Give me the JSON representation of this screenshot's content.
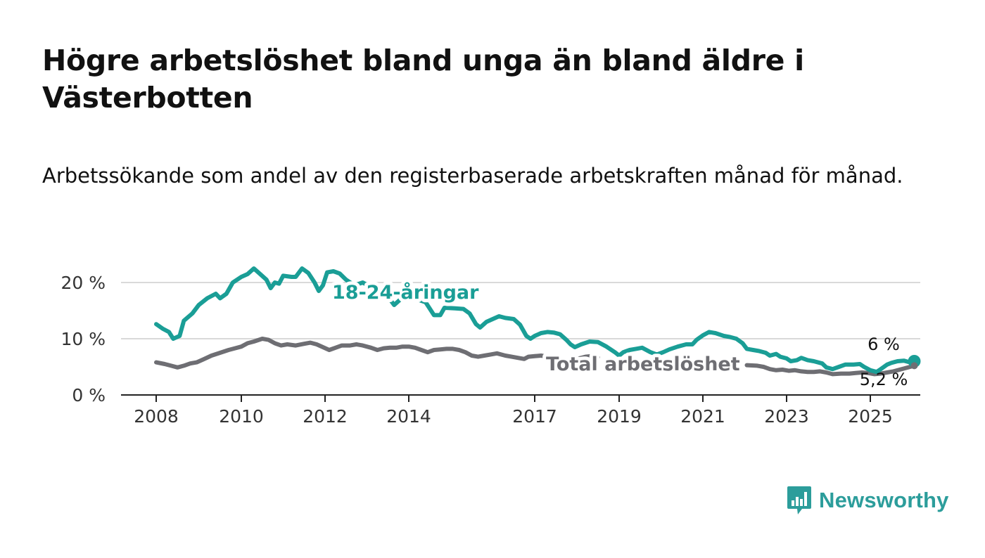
{
  "header": {
    "title": "Högre arbetslöshet bland unga än bland äldre i Västerbotten",
    "subtitle": "Arbetssökande som andel av den registerbaserade arbetskraften månad för månad."
  },
  "brand": {
    "name": "Newsworthy",
    "icon": "newsworthy-logo-icon",
    "color": "#2c9d9b"
  },
  "chart_data": {
    "type": "line",
    "title": "Högre arbetslöshet bland unga än bland äldre i Västerbotten",
    "subtitle": "Arbetssökande som andel av den registerbaserade arbetskraften månad för månad.",
    "xlabel": "",
    "ylabel": "",
    "x_range": [
      2008.0,
      2025.5
    ],
    "ylim": [
      0,
      22.5
    ],
    "x_ticks": [
      {
        "value": 2008,
        "label": "2008"
      },
      {
        "value": 2010,
        "label": "2010"
      },
      {
        "value": 2012,
        "label": "2012"
      },
      {
        "value": 2014,
        "label": "2014"
      },
      {
        "value": 2017,
        "label": "2017"
      },
      {
        "value": 2019,
        "label": "2019"
      },
      {
        "value": 2021,
        "label": "2021"
      },
      {
        "value": 2023,
        "label": "2023"
      },
      {
        "value": 2025,
        "label": "2025"
      }
    ],
    "y_ticks": [
      {
        "value": 0,
        "label": "0 %"
      },
      {
        "value": 10,
        "label": "10 %"
      },
      {
        "value": 20,
        "label": "20 %"
      }
    ],
    "grid": true,
    "legend": "inline labels",
    "series": [
      {
        "name": "18-24-åringar",
        "color": "#1a9e96",
        "end_label": "6 %",
        "points": [
          [
            2008.0,
            12.6
          ],
          [
            2008.15,
            11.8
          ],
          [
            2008.3,
            11.2
          ],
          [
            2008.4,
            10.0
          ],
          [
            2008.55,
            10.5
          ],
          [
            2008.65,
            13.2
          ],
          [
            2008.85,
            14.5
          ],
          [
            2009.0,
            16.0
          ],
          [
            2009.2,
            17.2
          ],
          [
            2009.4,
            18.0
          ],
          [
            2009.5,
            17.2
          ],
          [
            2009.65,
            18.0
          ],
          [
            2009.8,
            20.0
          ],
          [
            2010.0,
            21.0
          ],
          [
            2010.15,
            21.5
          ],
          [
            2010.3,
            22.5
          ],
          [
            2010.45,
            21.5
          ],
          [
            2010.6,
            20.5
          ],
          [
            2010.7,
            19.0
          ],
          [
            2010.8,
            20.0
          ],
          [
            2010.9,
            19.8
          ],
          [
            2011.0,
            21.2
          ],
          [
            2011.2,
            21.0
          ],
          [
            2011.3,
            21.0
          ],
          [
            2011.45,
            22.5
          ],
          [
            2011.6,
            21.7
          ],
          [
            2011.75,
            20.0
          ],
          [
            2011.85,
            18.5
          ],
          [
            2011.95,
            19.5
          ],
          [
            2012.05,
            21.8
          ],
          [
            2012.2,
            22.0
          ],
          [
            2012.35,
            21.6
          ],
          [
            2012.5,
            20.5
          ],
          [
            2012.7,
            19.5
          ],
          [
            2012.9,
            20.0
          ],
          [
            2013.1,
            19.2
          ],
          [
            2013.3,
            18.5
          ],
          [
            2013.5,
            17.5
          ],
          [
            2013.65,
            16.0
          ],
          [
            2013.8,
            17.0
          ],
          [
            2014.0,
            17.3
          ],
          [
            2014.2,
            17.0
          ],
          [
            2014.4,
            16.5
          ],
          [
            2014.6,
            14.2
          ],
          [
            2014.75,
            14.2
          ],
          [
            2014.85,
            15.5
          ],
          [
            2015.1,
            15.4
          ],
          [
            2015.3,
            15.3
          ],
          [
            2015.45,
            14.5
          ],
          [
            2015.6,
            12.6
          ],
          [
            2015.7,
            12.0
          ],
          [
            2015.85,
            13.0
          ],
          [
            2016.0,
            13.5
          ],
          [
            2016.15,
            14.0
          ],
          [
            2016.3,
            13.7
          ],
          [
            2016.5,
            13.5
          ],
          [
            2016.65,
            12.5
          ],
          [
            2016.8,
            10.5
          ],
          [
            2016.9,
            10.0
          ],
          [
            2017.0,
            10.5
          ],
          [
            2017.15,
            11.0
          ],
          [
            2017.3,
            11.2
          ],
          [
            2017.45,
            11.1
          ],
          [
            2017.6,
            10.8
          ],
          [
            2017.75,
            9.8
          ],
          [
            2017.85,
            9.0
          ],
          [
            2017.95,
            8.5
          ],
          [
            2018.1,
            9.0
          ],
          [
            2018.3,
            9.5
          ],
          [
            2018.5,
            9.4
          ],
          [
            2018.7,
            8.6
          ],
          [
            2018.9,
            7.6
          ],
          [
            2019.0,
            7.0
          ],
          [
            2019.1,
            7.6
          ],
          [
            2019.25,
            8.0
          ],
          [
            2019.4,
            8.2
          ],
          [
            2019.55,
            8.4
          ],
          [
            2019.75,
            7.6
          ],
          [
            2019.9,
            7.2
          ],
          [
            2020.05,
            7.6
          ],
          [
            2020.2,
            8.1
          ],
          [
            2020.4,
            8.6
          ],
          [
            2020.6,
            9.0
          ],
          [
            2020.75,
            9.0
          ],
          [
            2020.85,
            9.8
          ],
          [
            2021.0,
            10.6
          ],
          [
            2021.15,
            11.2
          ],
          [
            2021.3,
            11.0
          ],
          [
            2021.5,
            10.5
          ],
          [
            2021.65,
            10.3
          ],
          [
            2021.8,
            10.0
          ],
          [
            2021.95,
            9.2
          ],
          [
            2022.05,
            8.2
          ],
          [
            2022.2,
            8.0
          ],
          [
            2022.35,
            7.8
          ],
          [
            2022.5,
            7.5
          ],
          [
            2022.6,
            7.0
          ],
          [
            2022.75,
            7.3
          ],
          [
            2022.85,
            6.8
          ],
          [
            2023.0,
            6.5
          ],
          [
            2023.1,
            6.0
          ],
          [
            2023.25,
            6.2
          ],
          [
            2023.35,
            6.6
          ],
          [
            2023.5,
            6.2
          ],
          [
            2023.65,
            6.0
          ],
          [
            2023.85,
            5.6
          ],
          [
            2023.95,
            4.9
          ],
          [
            2024.1,
            4.6
          ],
          [
            2024.25,
            5.0
          ],
          [
            2024.4,
            5.4
          ],
          [
            2024.6,
            5.4
          ],
          [
            2024.75,
            5.5
          ],
          [
            2024.85,
            5.0
          ],
          [
            2025.0,
            4.4
          ],
          [
            2025.15,
            4.1
          ],
          [
            2025.25,
            4.6
          ],
          [
            2025.4,
            5.4
          ],
          [
            2025.5,
            5.7
          ],
          [
            2025.65,
            6.0
          ],
          [
            2025.8,
            6.1
          ],
          [
            2025.95,
            5.8
          ],
          [
            2026.05,
            6.0
          ]
        ]
      },
      {
        "name": "Total arbetslöshet",
        "color": "#6e6e73",
        "end_label": "5,2 %",
        "points": [
          [
            2008.0,
            5.8
          ],
          [
            2008.2,
            5.5
          ],
          [
            2008.35,
            5.2
          ],
          [
            2008.5,
            4.9
          ],
          [
            2008.65,
            5.2
          ],
          [
            2008.8,
            5.6
          ],
          [
            2008.95,
            5.8
          ],
          [
            2009.1,
            6.3
          ],
          [
            2009.3,
            7.0
          ],
          [
            2009.5,
            7.5
          ],
          [
            2009.7,
            8.0
          ],
          [
            2009.85,
            8.3
          ],
          [
            2010.0,
            8.6
          ],
          [
            2010.15,
            9.2
          ],
          [
            2010.3,
            9.5
          ],
          [
            2010.5,
            10.0
          ],
          [
            2010.65,
            9.8
          ],
          [
            2010.8,
            9.2
          ],
          [
            2010.95,
            8.8
          ],
          [
            2011.1,
            9.0
          ],
          [
            2011.3,
            8.8
          ],
          [
            2011.5,
            9.1
          ],
          [
            2011.65,
            9.3
          ],
          [
            2011.8,
            9.0
          ],
          [
            2011.95,
            8.5
          ],
          [
            2012.1,
            8.0
          ],
          [
            2012.25,
            8.4
          ],
          [
            2012.4,
            8.8
          ],
          [
            2012.6,
            8.8
          ],
          [
            2012.75,
            9.0
          ],
          [
            2012.9,
            8.8
          ],
          [
            2013.1,
            8.4
          ],
          [
            2013.25,
            8.0
          ],
          [
            2013.4,
            8.3
          ],
          [
            2013.55,
            8.4
          ],
          [
            2013.7,
            8.4
          ],
          [
            2013.85,
            8.6
          ],
          [
            2014.0,
            8.6
          ],
          [
            2014.15,
            8.4
          ],
          [
            2014.3,
            8.0
          ],
          [
            2014.45,
            7.6
          ],
          [
            2014.6,
            8.0
          ],
          [
            2014.75,
            8.1
          ],
          [
            2014.9,
            8.2
          ],
          [
            2015.05,
            8.2
          ],
          [
            2015.2,
            8.0
          ],
          [
            2015.35,
            7.6
          ],
          [
            2015.5,
            7.0
          ],
          [
            2015.65,
            6.8
          ],
          [
            2015.8,
            7.0
          ],
          [
            2015.95,
            7.2
          ],
          [
            2016.1,
            7.4
          ],
          [
            2016.3,
            7.0
          ],
          [
            2016.45,
            6.8
          ],
          [
            2016.6,
            6.6
          ],
          [
            2016.75,
            6.4
          ],
          [
            2016.85,
            6.8
          ],
          [
            2017.0,
            6.9
          ],
          [
            2017.15,
            7.0
          ],
          [
            2017.3,
            6.8
          ],
          [
            2017.45,
            6.6
          ],
          [
            2017.6,
            6.0
          ],
          [
            2017.75,
            6.2
          ],
          [
            2017.9,
            6.3
          ],
          [
            2018.05,
            6.5
          ],
          [
            2018.2,
            6.8
          ],
          [
            2018.35,
            6.9
          ],
          [
            2018.5,
            6.7
          ]
        ],
        "points_after_label": [
          [
            2022.05,
            5.3
          ],
          [
            2022.3,
            5.2
          ],
          [
            2022.45,
            5.0
          ],
          [
            2022.6,
            4.6
          ],
          [
            2022.75,
            4.4
          ],
          [
            2022.9,
            4.5
          ],
          [
            2023.05,
            4.3
          ],
          [
            2023.2,
            4.4
          ],
          [
            2023.35,
            4.2
          ],
          [
            2023.5,
            4.1
          ],
          [
            2023.65,
            4.1
          ],
          [
            2023.8,
            4.2
          ],
          [
            2023.95,
            4.0
          ],
          [
            2024.1,
            3.7
          ],
          [
            2024.3,
            3.8
          ],
          [
            2024.5,
            3.8
          ],
          [
            2024.65,
            3.9
          ],
          [
            2024.8,
            4.0
          ],
          [
            2024.95,
            3.9
          ],
          [
            2025.1,
            3.7
          ],
          [
            2025.25,
            3.8
          ],
          [
            2025.4,
            4.0
          ],
          [
            2025.55,
            4.2
          ],
          [
            2025.7,
            4.5
          ],
          [
            2025.85,
            4.8
          ],
          [
            2026.05,
            5.2
          ]
        ]
      }
    ],
    "annotations": [
      {
        "text": "18-24-åringar",
        "series": "18-24-åringar"
      },
      {
        "text": "Total arbetslöshet",
        "series": "Total arbetslöshet"
      }
    ]
  }
}
